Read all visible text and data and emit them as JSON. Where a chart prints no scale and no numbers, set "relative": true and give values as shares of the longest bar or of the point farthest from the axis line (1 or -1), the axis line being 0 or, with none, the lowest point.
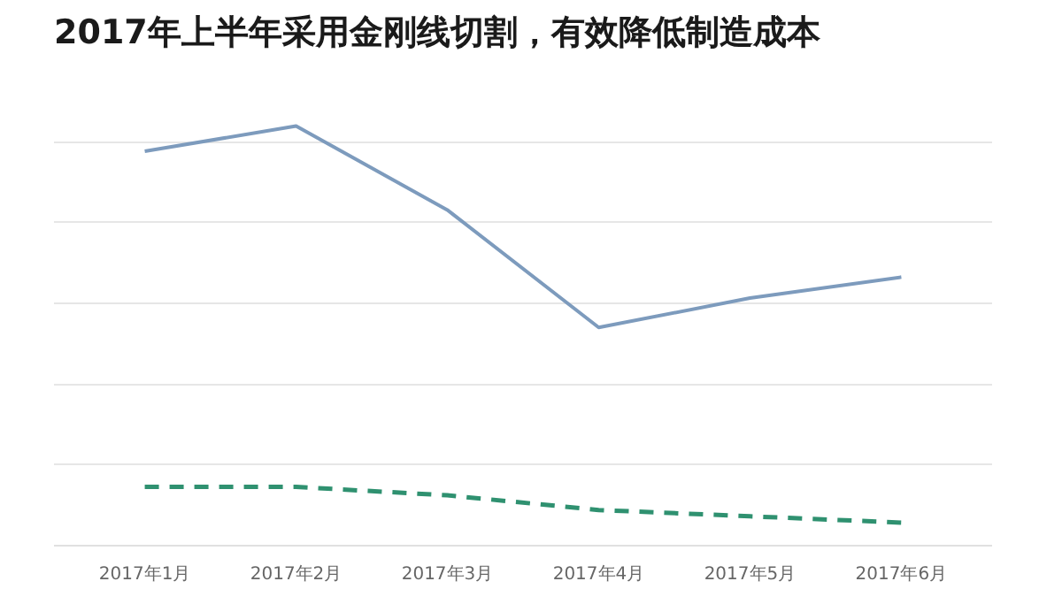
{
  "chart_data": {
    "type": "line",
    "title": "2017年上半年采用金刚线切割，有效降低制造成本",
    "categories": [
      "2017年1月",
      "2017年2月",
      "2017年3月",
      "2017年4月",
      "2017年5月",
      "2017年6月"
    ],
    "relative": true,
    "grid": "y",
    "series": [
      {
        "color": "#7d9bbd",
        "line_style": "solid",
        "values": [
          0.94,
          1,
          0.8,
          0.52,
          0.59,
          0.64
        ]
      },
      {
        "color": "#2f9170",
        "line_style": "dashed",
        "values": [
          0.14,
          0.14,
          0.12,
          0.085,
          0.07,
          0.055
        ]
      }
    ]
  }
}
